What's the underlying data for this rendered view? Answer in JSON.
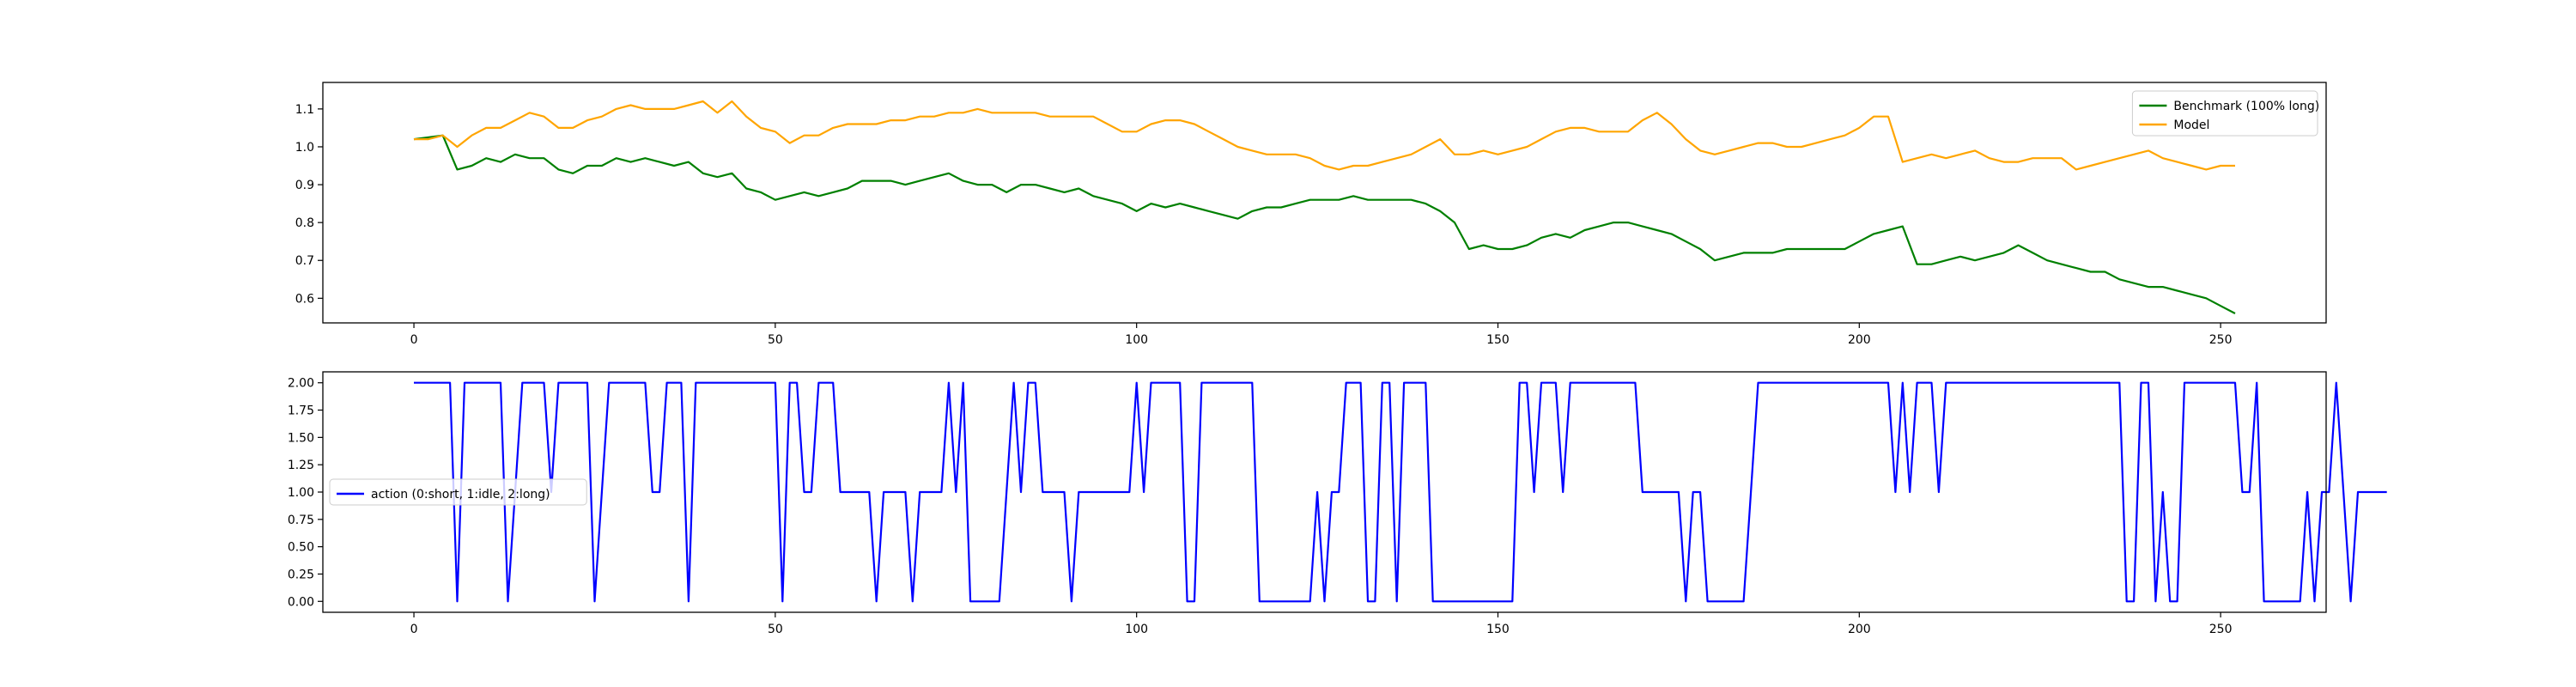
{
  "chart_data": [
    {
      "type": "line",
      "title": "",
      "xlabel": "",
      "ylabel": "",
      "xlim": [
        -12.6,
        264.6
      ],
      "ylim": [
        0.535,
        1.17
      ],
      "grid": false,
      "legend_position": "upper right",
      "x_ticks": [
        0,
        50,
        100,
        150,
        200,
        250
      ],
      "y_ticks": [
        0.6,
        0.7,
        0.8,
        0.9,
        1.0,
        1.1
      ],
      "x_tick_labels": [
        "0",
        "50",
        "100",
        "150",
        "200",
        "250"
      ],
      "y_tick_labels": [
        "0.6",
        "0.7",
        "0.8",
        "0.9",
        "1.0",
        "1.1"
      ],
      "series": [
        {
          "name": "Benchmark (100% long)",
          "color": "#008000",
          "x": [
            0,
            4,
            6,
            8,
            10,
            12,
            14,
            16,
            18,
            20,
            22,
            24,
            26,
            28,
            30,
            32,
            34,
            36,
            38,
            40,
            42,
            44,
            46,
            48,
            50,
            52,
            54,
            56,
            58,
            60,
            62,
            64,
            66,
            68,
            70,
            72,
            74,
            76,
            78,
            80,
            82,
            84,
            86,
            88,
            90,
            92,
            94,
            96,
            98,
            100,
            102,
            104,
            106,
            108,
            110,
            112,
            114,
            116,
            118,
            120,
            122,
            124,
            126,
            128,
            130,
            132,
            134,
            136,
            138,
            140,
            142,
            144,
            146,
            148,
            150,
            152,
            154,
            156,
            158,
            160,
            162,
            164,
            166,
            168,
            170,
            172,
            174,
            176,
            178,
            180,
            182,
            184,
            186,
            188,
            190,
            192,
            194,
            196,
            198,
            200,
            202,
            204,
            206,
            208,
            210,
            212,
            214,
            216,
            218,
            220,
            222,
            224,
            226,
            228,
            230,
            232,
            234,
            236,
            238,
            240,
            242,
            244,
            246,
            248,
            250,
            252
          ],
          "y": [
            1.02,
            1.03,
            0.94,
            0.95,
            0.97,
            0.96,
            0.98,
            0.97,
            0.97,
            0.94,
            0.93,
            0.95,
            0.95,
            0.97,
            0.96,
            0.97,
            0.96,
            0.95,
            0.96,
            0.93,
            0.92,
            0.93,
            0.89,
            0.88,
            0.86,
            0.87,
            0.88,
            0.87,
            0.88,
            0.89,
            0.91,
            0.91,
            0.91,
            0.9,
            0.91,
            0.92,
            0.93,
            0.91,
            0.9,
            0.9,
            0.88,
            0.9,
            0.9,
            0.89,
            0.88,
            0.89,
            0.87,
            0.86,
            0.85,
            0.83,
            0.85,
            0.84,
            0.85,
            0.84,
            0.83,
            0.82,
            0.81,
            0.83,
            0.84,
            0.84,
            0.85,
            0.86,
            0.86,
            0.86,
            0.87,
            0.86,
            0.86,
            0.86,
            0.86,
            0.85,
            0.83,
            0.8,
            0.73,
            0.74,
            0.73,
            0.73,
            0.74,
            0.76,
            0.77,
            0.76,
            0.78,
            0.79,
            0.8,
            0.8,
            0.79,
            0.78,
            0.77,
            0.75,
            0.73,
            0.7,
            0.71,
            0.72,
            0.72,
            0.72,
            0.73,
            0.73,
            0.73,
            0.73,
            0.73,
            0.75,
            0.77,
            0.78,
            0.79,
            0.69,
            0.69,
            0.7,
            0.71,
            0.7,
            0.71,
            0.72,
            0.74,
            0.72,
            0.7,
            0.69,
            0.68,
            0.67,
            0.67,
            0.65,
            0.64,
            0.63,
            0.63,
            0.62,
            0.61,
            0.6,
            0.58,
            0.56
          ]
        },
        {
          "name": "Model",
          "color": "#ffa500",
          "x": [
            0,
            2,
            4,
            6,
            8,
            10,
            12,
            14,
            16,
            18,
            20,
            22,
            24,
            26,
            28,
            30,
            32,
            34,
            36,
            38,
            40,
            42,
            44,
            46,
            48,
            50,
            52,
            54,
            56,
            58,
            60,
            62,
            64,
            66,
            68,
            70,
            72,
            74,
            76,
            78,
            80,
            82,
            84,
            86,
            88,
            90,
            92,
            94,
            96,
            98,
            100,
            102,
            104,
            106,
            108,
            110,
            112,
            114,
            116,
            118,
            120,
            122,
            124,
            126,
            128,
            130,
            132,
            134,
            136,
            138,
            140,
            142,
            144,
            146,
            148,
            150,
            152,
            154,
            156,
            158,
            160,
            162,
            164,
            166,
            168,
            170,
            172,
            174,
            176,
            178,
            180,
            182,
            184,
            186,
            188,
            190,
            192,
            194,
            196,
            198,
            200,
            202,
            204,
            206,
            208,
            210,
            212,
            214,
            216,
            218,
            220,
            222,
            224,
            226,
            228,
            230,
            232,
            234,
            236,
            238,
            240,
            242,
            244,
            246,
            248,
            250,
            252
          ],
          "y": [
            1.02,
            1.02,
            1.03,
            1.0,
            1.03,
            1.05,
            1.05,
            1.07,
            1.09,
            1.08,
            1.05,
            1.05,
            1.07,
            1.08,
            1.1,
            1.11,
            1.1,
            1.1,
            1.1,
            1.11,
            1.12,
            1.09,
            1.12,
            1.08,
            1.05,
            1.04,
            1.01,
            1.03,
            1.03,
            1.05,
            1.06,
            1.06,
            1.06,
            1.07,
            1.07,
            1.08,
            1.08,
            1.09,
            1.09,
            1.1,
            1.09,
            1.09,
            1.09,
            1.09,
            1.08,
            1.08,
            1.08,
            1.08,
            1.06,
            1.04,
            1.04,
            1.06,
            1.07,
            1.07,
            1.06,
            1.04,
            1.02,
            1.0,
            0.99,
            0.98,
            0.98,
            0.98,
            0.97,
            0.95,
            0.94,
            0.95,
            0.95,
            0.96,
            0.97,
            0.98,
            1.0,
            1.02,
            0.98,
            0.98,
            0.99,
            0.98,
            0.99,
            1.0,
            1.02,
            1.04,
            1.05,
            1.05,
            1.04,
            1.04,
            1.04,
            1.07,
            1.09,
            1.06,
            1.02,
            0.99,
            0.98,
            0.99,
            1.0,
            1.01,
            1.01,
            1.0,
            1.0,
            1.01,
            1.02,
            1.03,
            1.05,
            1.08,
            1.08,
            0.96,
            0.97,
            0.98,
            0.97,
            0.98,
            0.99,
            0.97,
            0.96,
            0.96,
            0.97,
            0.97,
            0.97,
            0.94,
            0.95,
            0.96,
            0.97,
            0.98,
            0.99,
            0.97,
            0.96,
            0.95,
            0.94,
            0.95,
            0.95
          ]
        }
      ]
    },
    {
      "type": "line",
      "title": "",
      "xlabel": "",
      "ylabel": "",
      "xlim": [
        -12.6,
        264.6
      ],
      "ylim": [
        -0.1,
        2.1
      ],
      "grid": false,
      "legend_position": "center left",
      "x_ticks": [
        0,
        50,
        100,
        150,
        200,
        250
      ],
      "y_ticks": [
        0.0,
        0.25,
        0.5,
        0.75,
        1.0,
        1.25,
        1.5,
        1.75,
        2.0
      ],
      "x_tick_labels": [
        "0",
        "50",
        "100",
        "150",
        "200",
        "250"
      ],
      "y_tick_labels": [
        "0.00",
        "0.25",
        "0.50",
        "0.75",
        "1.00",
        "1.25",
        "1.50",
        "1.75",
        "2.00"
      ],
      "series": [
        {
          "name": "action (0:short, 1:idle, 2:long)",
          "color": "#0000ff",
          "x_start": 0,
          "values": [
            2,
            2,
            2,
            2,
            2,
            2,
            0,
            2,
            2,
            2,
            2,
            2,
            2,
            0,
            1,
            2,
            2,
            2,
            2,
            1,
            2,
            2,
            2,
            2,
            2,
            0,
            1,
            2,
            2,
            2,
            2,
            2,
            2,
            1,
            1,
            2,
            2,
            2,
            0,
            2,
            2,
            2,
            2,
            2,
            2,
            2,
            2,
            2,
            2,
            2,
            2,
            0,
            2,
            2,
            1,
            1,
            2,
            2,
            2,
            1,
            1,
            1,
            1,
            1,
            0,
            1,
            1,
            1,
            1,
            0,
            1,
            1,
            1,
            1,
            2,
            1,
            2,
            0,
            0,
            0,
            0,
            0,
            1,
            2,
            1,
            2,
            2,
            1,
            1,
            1,
            1,
            0,
            1,
            1,
            1,
            1,
            1,
            1,
            1,
            1,
            2,
            1,
            2,
            2,
            2,
            2,
            2,
            0,
            0,
            2,
            2,
            2,
            2,
            2,
            2,
            2,
            2,
            0,
            0,
            0,
            0,
            0,
            0,
            0,
            0,
            1,
            0,
            1,
            1,
            2,
            2,
            2,
            0,
            0,
            2,
            2,
            0,
            2,
            2,
            2,
            2,
            0,
            0,
            0,
            0,
            0,
            0,
            0,
            0,
            0,
            0,
            0,
            0,
            2,
            2,
            1,
            2,
            2,
            2,
            1,
            2,
            2,
            2,
            2,
            2,
            2,
            2,
            2,
            2,
            2,
            1,
            1,
            1,
            1,
            1,
            1,
            0,
            1,
            1,
            0,
            0,
            0,
            0,
            0,
            0,
            1,
            2,
            2,
            2,
            2,
            2,
            2,
            2,
            2,
            2,
            2,
            2,
            2,
            2,
            2,
            2,
            2,
            2,
            2,
            2,
            1,
            2,
            1,
            2,
            2,
            2,
            1,
            2,
            2,
            2,
            2,
            2,
            2,
            2,
            2,
            2,
            2,
            2,
            2,
            2,
            2,
            2,
            2,
            2,
            2,
            2,
            2,
            2,
            2,
            2,
            2,
            2,
            0,
            0,
            2,
            2,
            0,
            1,
            0,
            0,
            2,
            2,
            2,
            2,
            2,
            2,
            2,
            2,
            1,
            1,
            2,
            0,
            0,
            0,
            0,
            0,
            0,
            1,
            0,
            1,
            1,
            2,
            1,
            0,
            1,
            1,
            1,
            1,
            1
          ]
        }
      ]
    }
  ]
}
